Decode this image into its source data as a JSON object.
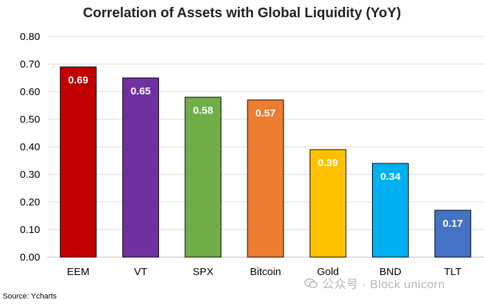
{
  "chart_data": {
    "type": "bar",
    "title": "Correlation of Assets with Global Liquidity (YoY)",
    "categories": [
      "EEM",
      "VT",
      "SPX",
      "Bitcoin",
      "Gold",
      "BND",
      "TLT"
    ],
    "values": [
      0.69,
      0.65,
      0.58,
      0.57,
      0.39,
      0.34,
      0.17
    ],
    "data_labels": [
      "0.69",
      "0.65",
      "0.58",
      "0.57",
      "0.39",
      "0.34",
      "0.17"
    ],
    "colors": [
      "#c00000",
      "#7030a0",
      "#70ad47",
      "#ed7d31",
      "#ffc000",
      "#00b0f0",
      "#4472c4"
    ],
    "ylim": [
      0,
      0.8
    ],
    "yticks": [
      "0.00",
      "0.10",
      "0.20",
      "0.30",
      "0.40",
      "0.50",
      "0.60",
      "0.70",
      "0.80"
    ],
    "ytick_values": [
      0,
      0.1,
      0.2,
      0.3,
      0.4,
      0.5,
      0.6,
      0.7,
      0.8
    ],
    "grid": true,
    "legend": "none"
  },
  "source": "Source: Ycharts",
  "watermark": "公众号 · Block unicorn"
}
